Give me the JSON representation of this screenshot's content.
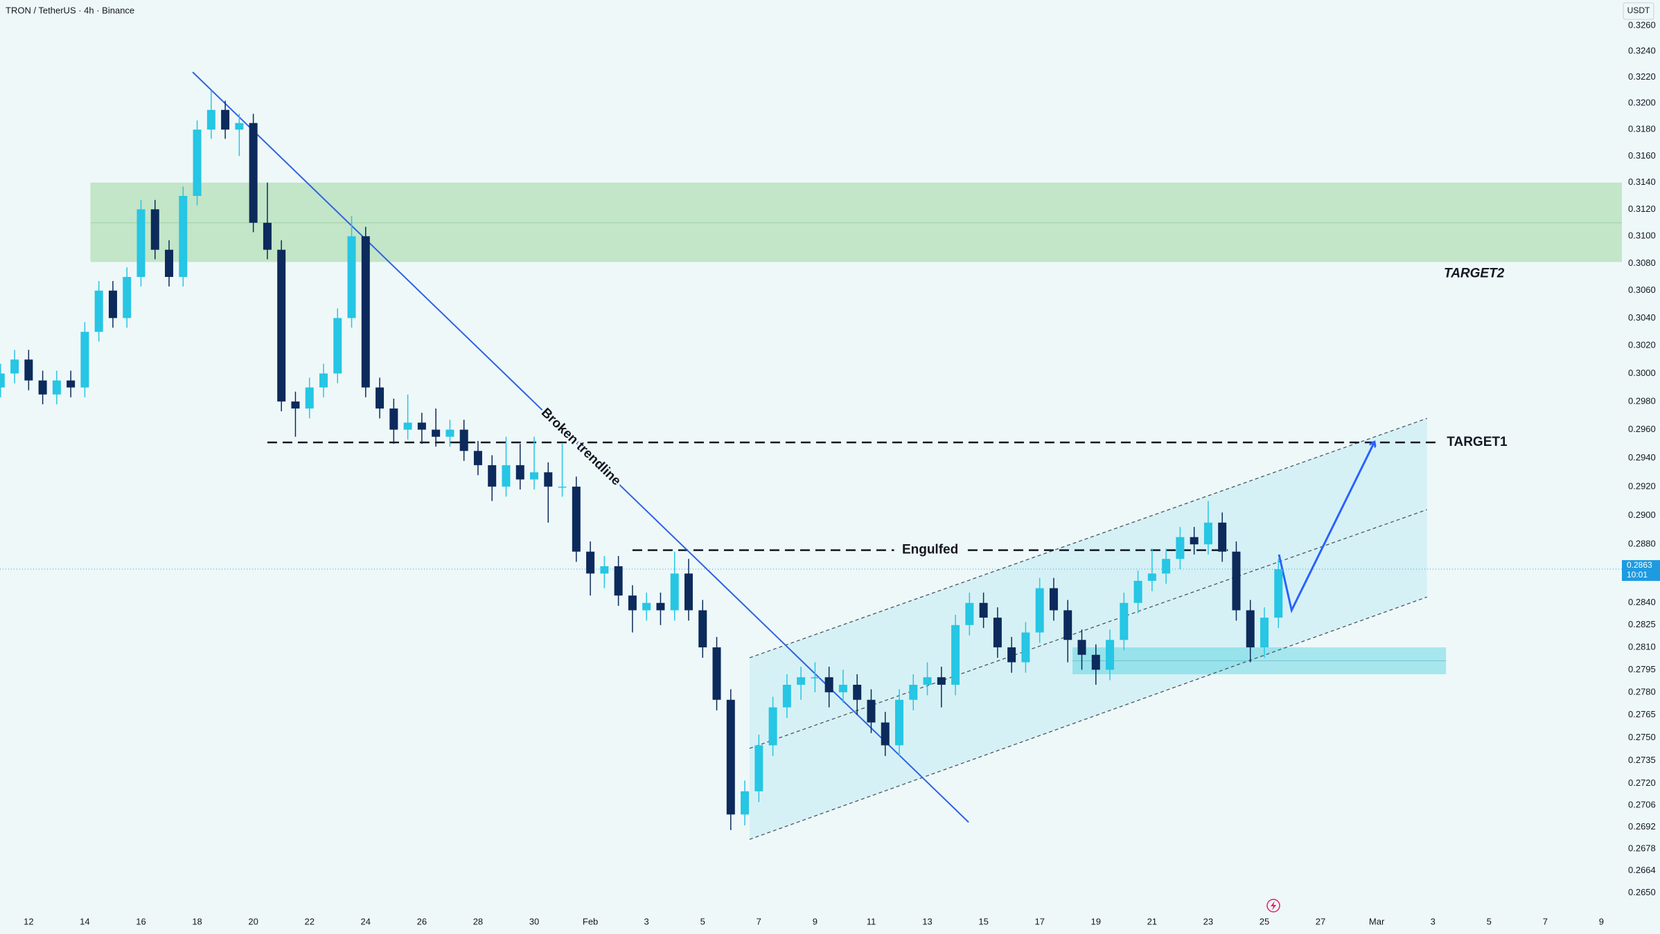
{
  "header": {
    "title": "TRON / TetherUS · 4h · Binance",
    "currency": "USDT"
  },
  "chart_data": {
    "type": "candlestick",
    "x": [
      11,
      11.5,
      12,
      12.5,
      13,
      13.5,
      14,
      14.5,
      15,
      15.5,
      16,
      16.5,
      17,
      17.5,
      18,
      18.5,
      19,
      19.5,
      20,
      20.5,
      21,
      21.5,
      22,
      22.5,
      23,
      23.5,
      24,
      24.5,
      25,
      25.5,
      26,
      26.5,
      27,
      27.5,
      28,
      28.5,
      29,
      29.5,
      30,
      30.5,
      31,
      31.5,
      32,
      32.5,
      33,
      33.5,
      34,
      34.5,
      35,
      35.5,
      36,
      36.5,
      37,
      37.5,
      38,
      38.5,
      39,
      39.5,
      40,
      40.5,
      41,
      41.5,
      42,
      42.5,
      43,
      43.5,
      44,
      44.5,
      45,
      45.5,
      46,
      46.5,
      47,
      47.5,
      48,
      48.5,
      49,
      49.5,
      50,
      50.5,
      51,
      51.5,
      52,
      52.5,
      53,
      53.5,
      54,
      54.5,
      55,
      55.5,
      56,
      56.5
    ],
    "open": [
      0.299,
      0.3,
      0.301,
      0.2995,
      0.2985,
      0.2995,
      0.299,
      0.303,
      0.306,
      0.304,
      0.307,
      0.312,
      0.309,
      0.307,
      0.313,
      0.318,
      0.3195,
      0.318,
      0.3185,
      0.311,
      0.309,
      0.298,
      0.2975,
      0.299,
      0.3,
      0.304,
      0.31,
      0.299,
      0.2975,
      0.296,
      0.2965,
      0.296,
      0.2955,
      0.296,
      0.2945,
      0.2935,
      0.292,
      0.2935,
      0.2925,
      0.293,
      0.292,
      0.292,
      0.2875,
      0.286,
      0.2865,
      0.2845,
      0.2835,
      0.284,
      0.2835,
      0.286,
      0.2835,
      0.281,
      0.2775,
      0.27,
      0.2715,
      0.2745,
      0.277,
      0.2785,
      0.279,
      0.279,
      0.278,
      0.2785,
      0.2775,
      0.276,
      0.2745,
      0.2775,
      0.2785,
      0.279,
      0.2785,
      0.2825,
      0.284,
      0.283,
      0.281,
      0.28,
      0.282,
      0.285,
      0.2835,
      0.2815,
      0.2805,
      0.2795,
      0.2815,
      0.284,
      0.2855,
      0.286,
      0.287,
      0.2885,
      0.288,
      0.2895,
      0.2875,
      0.2835,
      0.281,
      0.283
    ],
    "high": [
      0.3007,
      0.3017,
      0.3017,
      0.3002,
      0.3002,
      0.3002,
      0.3037,
      0.3067,
      0.3067,
      0.3077,
      0.3127,
      0.3127,
      0.3097,
      0.3137,
      0.3187,
      0.321,
      0.3202,
      0.3192,
      0.3192,
      0.314,
      0.3097,
      0.2987,
      0.2997,
      0.3007,
      0.3047,
      0.3115,
      0.3107,
      0.2997,
      0.2982,
      0.2985,
      0.2972,
      0.2975,
      0.2967,
      0.2967,
      0.2952,
      0.2942,
      0.2955,
      0.295,
      0.2955,
      0.2937,
      0.295,
      0.2927,
      0.2882,
      0.2872,
      0.2872,
      0.2852,
      0.2847,
      0.2847,
      0.2875,
      0.287,
      0.2842,
      0.2817,
      0.2782,
      0.2722,
      0.2752,
      0.2777,
      0.2792,
      0.2797,
      0.28,
      0.2797,
      0.2795,
      0.2792,
      0.2782,
      0.2767,
      0.2782,
      0.2792,
      0.28,
      0.2797,
      0.2832,
      0.2847,
      0.2847,
      0.2837,
      0.2817,
      0.2827,
      0.2857,
      0.2857,
      0.2842,
      0.2822,
      0.2812,
      0.2822,
      0.2847,
      0.2862,
      0.2877,
      0.2877,
      0.2892,
      0.2892,
      0.291,
      0.2902,
      0.2882,
      0.2842,
      0.2837,
      0.287
    ],
    "low": [
      0.2983,
      0.2993,
      0.2988,
      0.2978,
      0.2978,
      0.2983,
      0.2983,
      0.3023,
      0.3033,
      0.3033,
      0.3063,
      0.3083,
      0.3063,
      0.3063,
      0.3123,
      0.3173,
      0.3173,
      0.316,
      0.3103,
      0.3083,
      0.2973,
      0.2955,
      0.2968,
      0.2983,
      0.2993,
      0.3033,
      0.2983,
      0.2968,
      0.295,
      0.2953,
      0.295,
      0.2948,
      0.2948,
      0.2938,
      0.2928,
      0.291,
      0.2913,
      0.2918,
      0.2918,
      0.2895,
      0.2913,
      0.2868,
      0.2845,
      0.285,
      0.2838,
      0.282,
      0.2828,
      0.2825,
      0.2828,
      0.2828,
      0.2803,
      0.2768,
      0.269,
      0.2693,
      0.2708,
      0.2738,
      0.2763,
      0.2775,
      0.278,
      0.277,
      0.2773,
      0.2765,
      0.2753,
      0.2738,
      0.2738,
      0.2768,
      0.2778,
      0.277,
      0.2778,
      0.2818,
      0.2823,
      0.2803,
      0.2793,
      0.2793,
      0.2813,
      0.2828,
      0.28,
      0.2795,
      0.2785,
      0.2788,
      0.2808,
      0.2833,
      0.2848,
      0.2853,
      0.2863,
      0.2873,
      0.2873,
      0.2868,
      0.2828,
      0.28,
      0.2803,
      0.2823
    ],
    "close": [
      0.3,
      0.301,
      0.2995,
      0.2985,
      0.2995,
      0.299,
      0.303,
      0.306,
      0.304,
      0.307,
      0.312,
      0.309,
      0.307,
      0.313,
      0.318,
      0.3195,
      0.318,
      0.3185,
      0.311,
      0.309,
      0.298,
      0.2975,
      0.299,
      0.3,
      0.304,
      0.31,
      0.299,
      0.2975,
      0.296,
      0.2965,
      0.296,
      0.2955,
      0.296,
      0.2945,
      0.2935,
      0.292,
      0.2935,
      0.2925,
      0.293,
      0.292,
      0.292,
      0.2875,
      0.286,
      0.2865,
      0.2845,
      0.2835,
      0.284,
      0.2835,
      0.286,
      0.2835,
      0.281,
      0.2775,
      0.27,
      0.2715,
      0.2745,
      0.277,
      0.2785,
      0.279,
      0.279,
      0.278,
      0.2785,
      0.2775,
      0.276,
      0.2745,
      0.2775,
      0.2785,
      0.279,
      0.2785,
      0.2825,
      0.284,
      0.283,
      0.281,
      0.28,
      0.282,
      0.285,
      0.2835,
      0.2815,
      0.2805,
      0.2795,
      0.2815,
      0.284,
      0.2855,
      0.286,
      0.287,
      0.2885,
      0.288,
      0.2895,
      0.2875,
      0.2835,
      0.281,
      0.283,
      0.2863
    ],
    "up_color": "#26c6e4",
    "down_color": "#0c2a5b",
    "log_scale": true,
    "grid": false,
    "xlim": [
      10.98,
      68.73
    ],
    "ylim": [
      0.2624,
      0.328
    ],
    "xticks": [
      12,
      14,
      16,
      18,
      20,
      22,
      24,
      26,
      28,
      30,
      {
        "value": 32,
        "label": "Feb"
      },
      {
        "value": 34,
        "label": "3"
      },
      {
        "value": 36,
        "label": "5"
      },
      {
        "value": 38,
        "label": "7"
      },
      {
        "value": 40,
        "label": "9"
      },
      {
        "value": 42,
        "label": "11"
      },
      {
        "value": 44,
        "label": "13"
      },
      {
        "value": 46,
        "label": "15"
      },
      {
        "value": 48,
        "label": "17"
      },
      {
        "value": 50,
        "label": "19"
      },
      {
        "value": 52,
        "label": "21"
      },
      {
        "value": 54,
        "label": "23"
      },
      {
        "value": 56,
        "label": "25"
      },
      {
        "value": 58,
        "label": "27"
      },
      {
        "value": 60,
        "label": "Mar"
      },
      {
        "value": 62,
        "label": "3"
      },
      {
        "value": 64,
        "label": "5"
      },
      {
        "value": 66,
        "label": "7"
      },
      {
        "value": 68,
        "label": "9"
      }
    ],
    "yticks": [
      {
        "value": 0.326,
        "label": "0.3260"
      },
      {
        "value": 0.324,
        "label": "0.3240"
      },
      {
        "value": 0.322,
        "label": "0.3220"
      },
      {
        "value": 0.32,
        "label": "0.3200"
      },
      {
        "value": 0.318,
        "label": "0.3180"
      },
      {
        "value": 0.316,
        "label": "0.3160"
      },
      {
        "value": 0.314,
        "label": "0.3140"
      },
      {
        "value": 0.312,
        "label": "0.3120"
      },
      {
        "value": 0.31,
        "label": "0.3100"
      },
      {
        "value": 0.308,
        "label": "0.3080"
      },
      {
        "value": 0.306,
        "label": "0.3060"
      },
      {
        "value": 0.304,
        "label": "0.3040"
      },
      {
        "value": 0.302,
        "label": "0.3020"
      },
      {
        "value": 0.3,
        "label": "0.3000"
      },
      {
        "value": 0.298,
        "label": "0.2980"
      },
      {
        "value": 0.296,
        "label": "0.2960"
      },
      {
        "value": 0.294,
        "label": "0.2940"
      },
      {
        "value": 0.292,
        "label": "0.2920"
      },
      {
        "value": 0.29,
        "label": "0.2900"
      },
      {
        "value": 0.288,
        "label": "0.2880"
      },
      {
        "value": 0.284,
        "label": "0.2840"
      },
      0.2825,
      {
        "value": 0.281,
        "label": "0.2810"
      },
      0.2795,
      {
        "value": 0.278,
        "label": "0.2780"
      },
      0.2765,
      {
        "value": 0.275,
        "label": "0.2750"
      },
      0.2735,
      {
        "value": 0.272,
        "label": "0.2720"
      },
      0.2706,
      0.2692,
      0.2678,
      0.2664,
      {
        "value": 0.265,
        "label": "0.2650"
      }
    ],
    "last_price": 0.2863,
    "countdown": "10:01",
    "target2": {
      "label": "TARGET2",
      "x": [
        14.2,
        68.73
      ],
      "zone": [
        0.3081,
        0.314
      ],
      "mid": 0.311
    },
    "target1": {
      "label": "TARGET1",
      "x": [
        20.5,
        62.2
      ],
      "price": 0.2951
    },
    "engulfed": {
      "label": "Engulfed",
      "x": [
        33.5,
        54.7
      ],
      "price": 0.2876
    },
    "trendline": {
      "label": "Broken trendline",
      "x": [
        17.84,
        45.47
      ],
      "y": [
        0.3224,
        0.2695
      ]
    },
    "channel": {
      "x": [
        37.67,
        61.79
      ],
      "upper": [
        0.2803,
        0.2968
      ],
      "middle": [
        0.2743,
        0.2904
      ],
      "lower": [
        0.2684,
        0.2844
      ]
    },
    "support_zone": {
      "x": [
        49.17,
        62.47
      ],
      "range": [
        0.2792,
        0.281
      ],
      "mid": 0.2801
    },
    "projection": {
      "x": [
        56.52,
        56.97,
        59.91
      ],
      "y": [
        0.2873,
        0.2835,
        0.2951
      ]
    }
  }
}
